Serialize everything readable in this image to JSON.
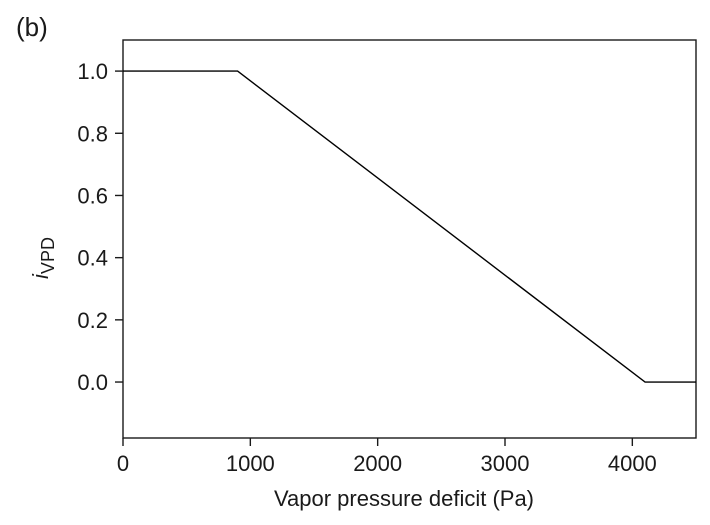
{
  "panel_label": "(b)",
  "chart_data": {
    "type": "line",
    "xlabel": "Vapor pressure deficit (Pa)",
    "ylabel": {
      "main": "i",
      "subscript": "VPD"
    },
    "xlim": [
      0,
      4500
    ],
    "ylim": [
      -0.18,
      1.1
    ],
    "xticks": [
      0,
      1000,
      2000,
      3000,
      4000
    ],
    "xtick_labels": [
      "0",
      "1000",
      "2000",
      "3000",
      "4000"
    ],
    "yticks": [
      0.0,
      0.2,
      0.4,
      0.6,
      0.8,
      1.0
    ],
    "ytick_labels": [
      "0.0",
      "0.2",
      "0.4",
      "0.6",
      "0.8",
      "1.0"
    ],
    "grid": false,
    "series": [
      {
        "color": "#000000",
        "x": [
          0,
          900,
          4100,
          4500
        ],
        "y": [
          1.0,
          1.0,
          0.0,
          0.0
        ]
      }
    ]
  }
}
